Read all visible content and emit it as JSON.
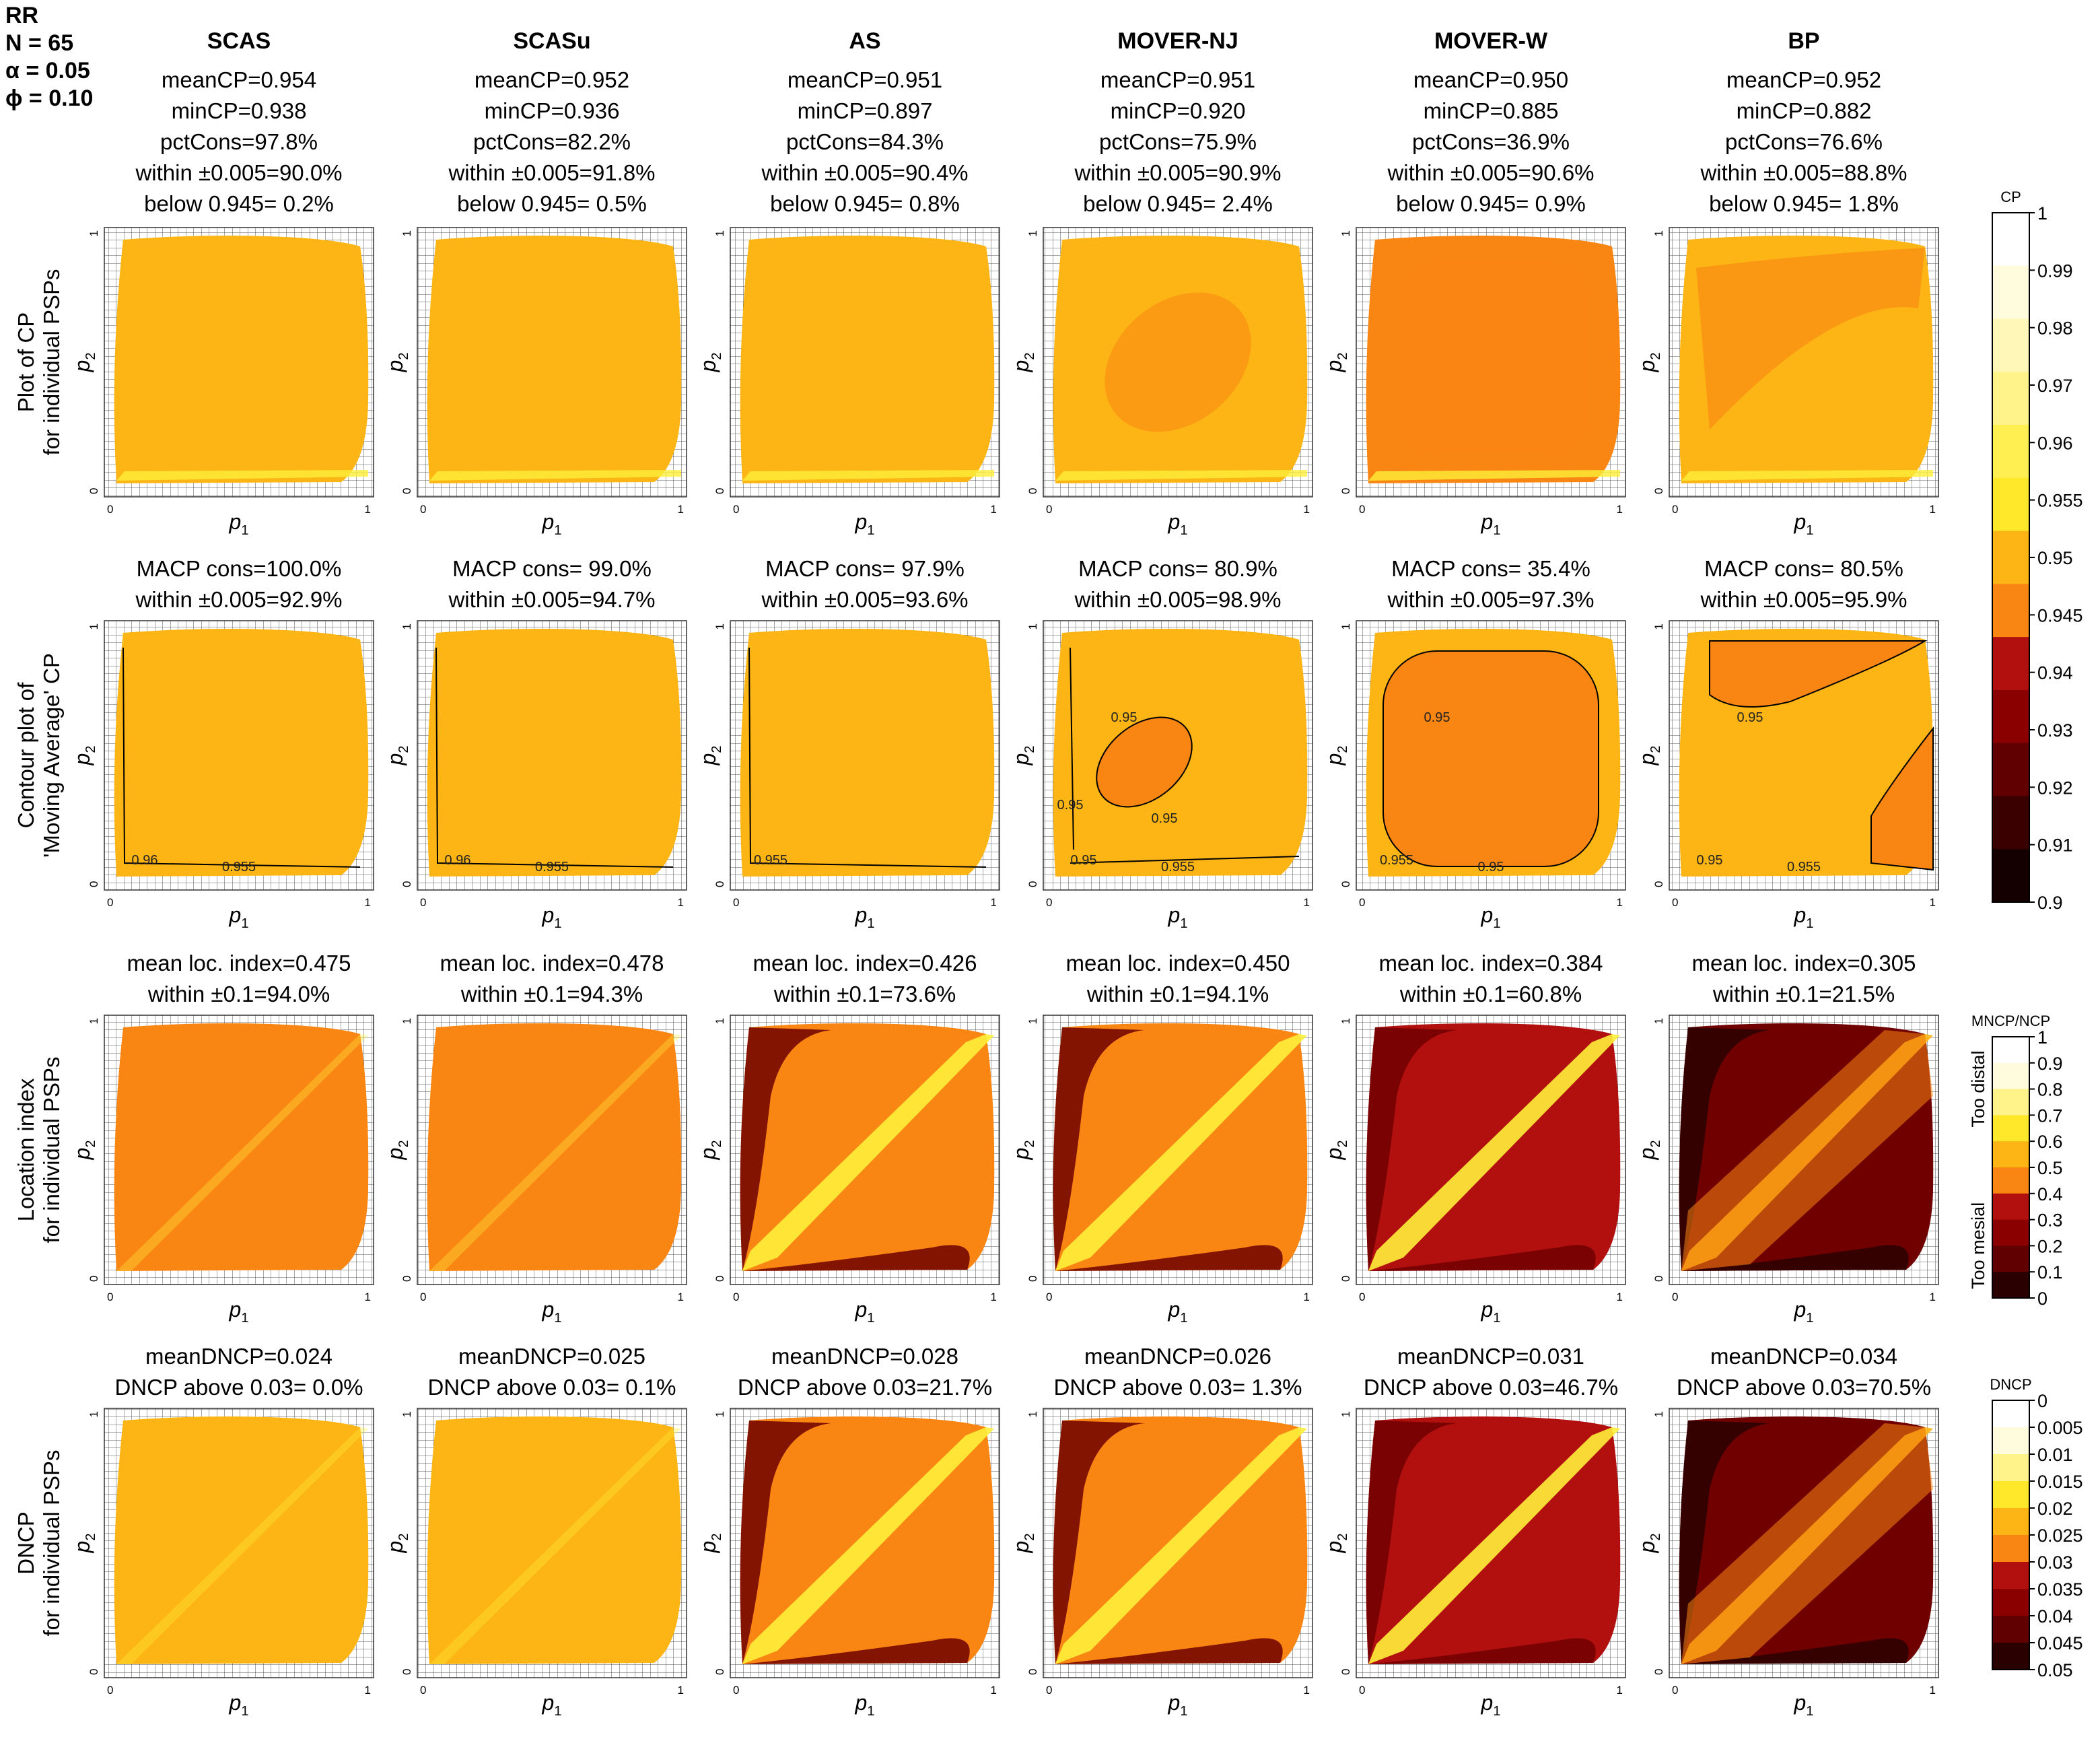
{
  "panel_info": {
    "lines": [
      "RR",
      "N = 65",
      "α = 0.05",
      "ϕ = 0.10"
    ]
  },
  "axes": {
    "xlabel": "p",
    "xlabel_sub": "1",
    "ylabel": "p",
    "ylabel_sub": "2",
    "tick_min": "0",
    "tick_max": "1"
  },
  "methods": [
    "SCAS",
    "SCASu",
    "AS",
    "MOVER-NJ",
    "MOVER-W",
    "BP"
  ],
  "row_labels": [
    [
      "Plot of CP",
      "for individual PSPs"
    ],
    [
      "Contour plot of",
      "'Moving Average' CP"
    ],
    [
      "Location index",
      "for individual PSPs"
    ],
    [
      "DNCP",
      "for individual PSPs"
    ]
  ],
  "row_stats": [
    [
      [
        "meanCP=0.954",
        "minCP=0.938",
        "pctCons=97.8%",
        "within ±0.005=90.0%",
        "below 0.945= 0.2%"
      ],
      [
        "meanCP=0.952",
        "minCP=0.936",
        "pctCons=82.2%",
        "within ±0.005=91.8%",
        "below 0.945= 0.5%"
      ],
      [
        "meanCP=0.951",
        "minCP=0.897",
        "pctCons=84.3%",
        "within ±0.005=90.4%",
        "below 0.945= 0.8%"
      ],
      [
        "meanCP=0.951",
        "minCP=0.920",
        "pctCons=75.9%",
        "within ±0.005=90.9%",
        "below 0.945= 2.4%"
      ],
      [
        "meanCP=0.950",
        "minCP=0.885",
        "pctCons=36.9%",
        "within ±0.005=90.6%",
        "below 0.945= 0.9%"
      ],
      [
        "meanCP=0.952",
        "minCP=0.882",
        "pctCons=76.6%",
        "within ±0.005=88.8%",
        "below 0.945= 1.8%"
      ]
    ],
    [
      [
        "MACP cons=100.0%",
        "within ±0.005=92.9%"
      ],
      [
        "MACP cons= 99.0%",
        "within ±0.005=94.7%"
      ],
      [
        "MACP cons= 97.9%",
        "within ±0.005=93.6%"
      ],
      [
        "MACP cons= 80.9%",
        "within ±0.005=98.9%"
      ],
      [
        "MACP cons= 35.4%",
        "within ±0.005=97.3%"
      ],
      [
        "MACP cons= 80.5%",
        "within ±0.005=95.9%"
      ]
    ],
    [
      [
        "mean loc. index=0.475",
        "within ±0.1=94.0%"
      ],
      [
        "mean loc. index=0.478",
        "within ±0.1=94.3%"
      ],
      [
        "mean loc. index=0.426",
        "within ±0.1=73.6%"
      ],
      [
        "mean loc. index=0.450",
        "within ±0.1=94.1%"
      ],
      [
        "mean loc. index=0.384",
        "within ±0.1=60.8%"
      ],
      [
        "mean loc. index=0.305",
        "within ±0.1=21.5%"
      ]
    ],
    [
      [
        "meanDNCP=0.024",
        "DNCP above 0.03= 0.0%"
      ],
      [
        "meanDNCP=0.025",
        "DNCP above 0.03= 0.1%"
      ],
      [
        "meanDNCP=0.028",
        "DNCP above 0.03=21.7%"
      ],
      [
        "meanDNCP=0.026",
        "DNCP above 0.03= 1.3%"
      ],
      [
        "meanDNCP=0.031",
        "DNCP above 0.03=46.7%"
      ],
      [
        "meanDNCP=0.034",
        "DNCP above 0.03=70.5%"
      ]
    ]
  ],
  "contour_labels": [
    [
      "0.96",
      "0.955"
    ],
    [
      "0.96",
      "0.955"
    ],
    [
      "0.955"
    ],
    [
      "0.95",
      "0.955",
      "0.95",
      "0.95",
      "0.95"
    ],
    [
      "0.955",
      "0.95",
      "0.95"
    ],
    [
      "0.95",
      "0.955",
      "0.95"
    ]
  ],
  "colorbars": [
    {
      "title": "CP",
      "labels": [
        "1",
        "0.99",
        "0.98",
        "0.97",
        "0.96",
        "0.955",
        "0.95",
        "0.945",
        "0.94",
        "0.93",
        "0.92",
        "0.91",
        "0.9"
      ],
      "side_top": "",
      "side_bottom": ""
    },
    {
      "title": "MNCP/NCP",
      "labels": [
        "1",
        "0.9",
        "0.8",
        "0.7",
        "0.6",
        "0.5",
        "0.4",
        "0.3",
        "0.2",
        "0.1",
        "0"
      ],
      "side_top": "Too distal",
      "side_bottom": "Too mesial"
    },
    {
      "title": "DNCP",
      "labels": [
        "0",
        "0.005",
        "0.01",
        "0.015",
        "0.02",
        "0.025",
        "0.03",
        "0.035",
        "0.04",
        "0.045",
        "0.05"
      ],
      "side_top": "",
      "side_bottom": ""
    }
  ],
  "colors": {
    "white": "#ffffff",
    "pale": "#fffbdc",
    "yellow_light": "#ffff80",
    "yellow": "#ffef3a",
    "gold": "#fcb514",
    "orange": "#f98513",
    "red_dark": "#b20f0f",
    "maroon": "#700000",
    "black_red": "#2a0000"
  },
  "chart_data": {
    "type": "heatmap",
    "x_range": [
      0,
      1
    ],
    "y_range": [
      0,
      1
    ],
    "rows": 4,
    "columns": 6
  }
}
